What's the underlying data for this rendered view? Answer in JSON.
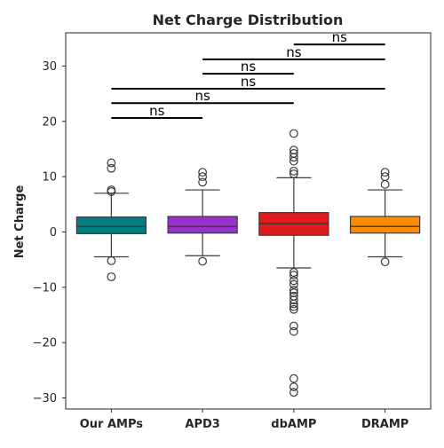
{
  "chart_data": {
    "type": "box",
    "title": "Net Charge Distribution",
    "xlabel": "",
    "ylabel": "Net Charge",
    "ylim": [
      -32,
      36
    ],
    "yticks": [
      -30,
      -20,
      -10,
      0,
      10,
      20,
      30
    ],
    "ytick_labels": [
      "−30",
      "−20",
      "−10",
      "0",
      "10",
      "20",
      "30"
    ],
    "grid": false,
    "categories": [
      "Our AMPs",
      "APD3",
      "dbAMP",
      "DRAMP"
    ],
    "boxes": [
      {
        "category": "Our AMPs",
        "color": "#008080",
        "q1": -0.3,
        "median": 1.0,
        "q3": 2.7,
        "whisker_low": -4.5,
        "whisker_high": 7.0,
        "outliers": [
          7.3,
          7.6,
          11.5,
          12.5,
          -5.2,
          -8.1
        ]
      },
      {
        "category": "APD3",
        "color": "#9932cc",
        "q1": -0.2,
        "median": 1.0,
        "q3": 2.8,
        "whisker_low": -4.3,
        "whisker_high": 7.6,
        "outliers": [
          9.0,
          10.0,
          10.8,
          -5.3
        ]
      },
      {
        "category": "dbAMP",
        "color": "#e31a1c",
        "q1": -0.6,
        "median": 1.5,
        "q3": 3.5,
        "whisker_low": -6.5,
        "whisker_high": 9.8,
        "outliers": [
          10.5,
          11.0,
          12.8,
          13.5,
          14.2,
          14.8,
          17.8,
          -7.3,
          -7.8,
          -8.8,
          -9.5,
          -10.5,
          -11.0,
          -11.6,
          -12.3,
          -13.0,
          -13.5,
          -14.0,
          -17.0,
          -18.0,
          -26.5,
          -28.0,
          -29.0
        ]
      },
      {
        "category": "DRAMP",
        "color": "#ff8c00",
        "q1": -0.2,
        "median": 1.0,
        "q3": 2.8,
        "whisker_low": -4.5,
        "whisker_high": 7.6,
        "outliers": [
          8.6,
          10.0,
          10.8,
          -5.4
        ]
      }
    ],
    "annotations": [
      {
        "from": "Our AMPs",
        "to": "APD3",
        "y": 20.6,
        "label": "ns"
      },
      {
        "from": "Our AMPs",
        "to": "dbAMP",
        "y": 23.3,
        "label": "ns"
      },
      {
        "from": "Our AMPs",
        "to": "DRAMP",
        "y": 25.9,
        "label": "ns"
      },
      {
        "from": "APD3",
        "to": "dbAMP",
        "y": 28.6,
        "label": "ns"
      },
      {
        "from": "APD3",
        "to": "DRAMP",
        "y": 31.2,
        "label": "ns"
      },
      {
        "from": "dbAMP",
        "to": "DRAMP",
        "y": 33.9,
        "label": "ns"
      }
    ]
  }
}
